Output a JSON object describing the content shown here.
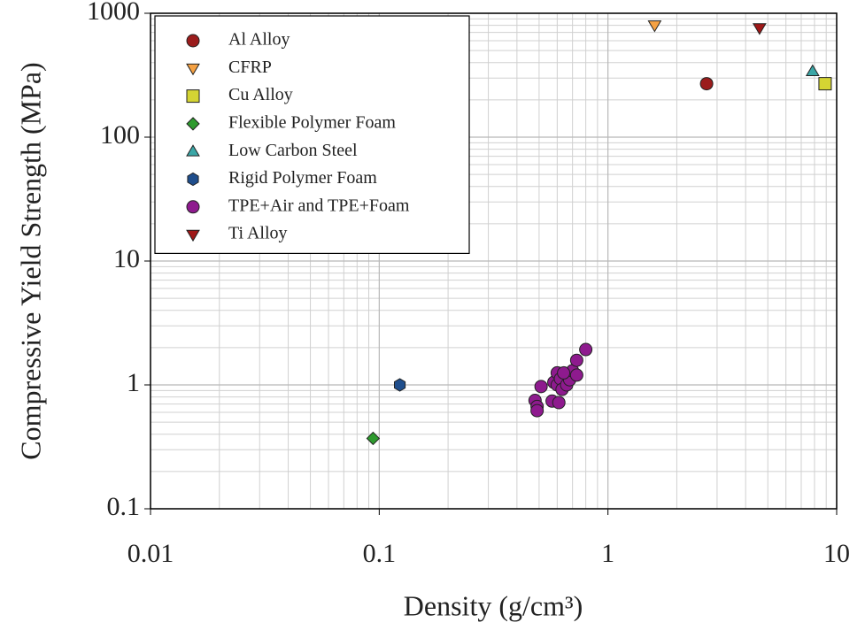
{
  "chart_data": {
    "type": "scatter",
    "x_label": "Density (g/cm³)",
    "y_label": "Compressive Yield Strength (MPa)",
    "xscale": "log",
    "yscale": "log",
    "xlim": [
      0.01,
      10
    ],
    "ylim": [
      0.1,
      1000
    ],
    "xticks": [
      0.01,
      0.1,
      1,
      10
    ],
    "yticks": [
      0.1,
      1,
      10,
      100,
      1000
    ],
    "grid": true,
    "minor_grid": true,
    "legend": "upper left",
    "series": [
      {
        "name": "Al Alloy",
        "color": "#9b1c1c",
        "marker": "o",
        "x": [
          2.7
        ],
        "values": [
          270
        ]
      },
      {
        "name": "CFRP",
        "color": "#f5a142",
        "marker": "v",
        "x": [
          1.6
        ],
        "values": [
          800
        ]
      },
      {
        "name": "Cu Alloy",
        "color": "#d4d433",
        "marker": "s",
        "x": [
          8.9
        ],
        "values": [
          270
        ]
      },
      {
        "name": "Flexible Polymer Foam",
        "color": "#2e9a2e",
        "marker": "D",
        "x": [
          0.094
        ],
        "values": [
          0.37
        ]
      },
      {
        "name": "Low Carbon Steel",
        "color": "#3aa6a6",
        "marker": "^",
        "x": [
          7.85
        ],
        "values": [
          340
        ]
      },
      {
        "name": "Rigid Polymer Foam",
        "color": "#1f4e8c",
        "marker": "h",
        "x": [
          0.123
        ],
        "values": [
          1.0
        ]
      },
      {
        "name": "TPE+Air and TPE+Foam",
        "color": "#8e1a8e",
        "marker": "o",
        "x": [
          0.48,
          0.49,
          0.49,
          0.51,
          0.58,
          0.57,
          0.61,
          0.6,
          0.6,
          0.62,
          0.63,
          0.66,
          0.68,
          0.7,
          0.73,
          0.73,
          0.8,
          0.64
        ],
        "values": [
          0.75,
          0.67,
          0.62,
          0.97,
          1.05,
          0.74,
          0.72,
          1.0,
          1.25,
          1.12,
          0.92,
          1.0,
          1.1,
          1.3,
          1.2,
          1.58,
          1.93,
          1.25
        ]
      },
      {
        "name": "Ti Alloy",
        "color": "#a01818",
        "marker": "v",
        "x": [
          4.6
        ],
        "values": [
          760
        ]
      }
    ]
  }
}
